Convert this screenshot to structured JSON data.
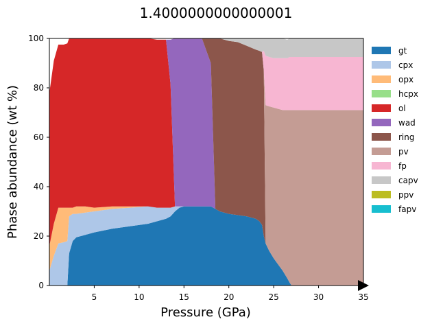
{
  "chart_data": {
    "type": "area",
    "title": "1.4000000000000001",
    "xlabel": "Pressure (GPa)",
    "ylabel": "Phase abundance (wt %)",
    "xlim": [
      0,
      35
    ],
    "ylim": [
      0,
      100
    ],
    "xticks": [
      5,
      10,
      15,
      20,
      25,
      30,
      35
    ],
    "yticks": [
      0,
      20,
      40,
      60,
      80,
      100
    ],
    "grid": false,
    "legend_position": "right",
    "x": [
      0,
      0.5,
      1,
      1.6,
      2,
      2.2,
      2.6,
      3,
      4,
      5,
      7,
      9,
      11,
      12,
      13,
      13.5,
      14,
      14.5,
      15,
      16,
      17,
      18,
      18.5,
      19,
      20,
      21,
      22,
      23,
      23.4,
      23.7,
      23.9,
      24.1,
      24.5,
      25,
      26,
      26.5,
      26.8,
      27,
      28,
      30,
      32,
      35
    ],
    "series": [
      {
        "name": "gt",
        "color": "#1f77b4",
        "values": [
          0,
          0,
          0,
          0,
          0,
          13,
          18,
          19.5,
          20.5,
          21.5,
          23,
          24,
          25,
          26,
          27,
          28,
          30,
          31.5,
          32,
          32,
          32,
          32,
          31,
          30,
          29,
          28.5,
          28,
          27,
          26,
          24.5,
          20,
          17,
          14,
          11,
          6,
          3,
          1,
          0,
          0,
          0,
          0,
          0
        ]
      },
      {
        "name": "cpx",
        "color": "#aec7e8",
        "values": [
          6,
          12,
          17,
          17.5,
          18,
          15,
          11,
          9.5,
          9,
          8.5,
          8,
          7.5,
          7,
          5.5,
          4.5,
          3.5,
          2,
          0.5,
          0,
          0,
          0,
          0,
          0,
          0,
          0,
          0,
          0,
          0,
          0,
          0,
          0,
          0,
          0,
          0,
          0,
          0,
          0,
          0,
          0,
          0,
          0,
          0
        ]
      },
      {
        "name": "opx",
        "color": "#ffbb78",
        "values": [
          10,
          13,
          14.5,
          14,
          13.5,
          3.5,
          2.5,
          3,
          2.5,
          1.5,
          1,
          0.5,
          0,
          0,
          0,
          0,
          0,
          0,
          0,
          0,
          0,
          0,
          0,
          0,
          0,
          0,
          0,
          0,
          0,
          0,
          0,
          0,
          0,
          0,
          0,
          0,
          0,
          0,
          0,
          0,
          0,
          0
        ]
      },
      {
        "name": "hcpx",
        "color": "#98df8a",
        "values": [
          0,
          0,
          0,
          0,
          0,
          0,
          0,
          0,
          0,
          0,
          0,
          0,
          0,
          0,
          0,
          0,
          0,
          0,
          0,
          0,
          0,
          0,
          0,
          0,
          0,
          0,
          0,
          0,
          0,
          0,
          0,
          0,
          0,
          0,
          0,
          0,
          0,
          0,
          0,
          0,
          0,
          0
        ]
      },
      {
        "name": "ol",
        "color": "#d62728",
        "values": [
          62,
          66,
          66,
          66,
          66.5,
          68.5,
          68.5,
          68,
          68,
          68.5,
          68,
          68,
          68,
          68,
          68,
          50,
          0,
          0,
          0,
          0,
          0,
          0,
          0,
          0,
          0,
          0,
          0,
          0,
          0,
          0,
          0,
          0,
          0,
          0,
          0,
          0,
          0,
          0,
          0,
          0,
          0,
          0
        ]
      },
      {
        "name": "wad",
        "color": "#9467bd",
        "values": [
          0,
          0,
          0,
          0,
          0,
          0,
          0,
          0,
          0,
          0,
          0,
          0,
          0,
          0,
          0,
          18,
          68,
          68,
          68,
          68,
          68,
          58,
          0,
          0,
          0,
          0,
          0,
          0,
          0,
          0,
          0,
          0,
          0,
          0,
          0,
          0,
          0,
          0,
          0,
          0,
          0,
          0
        ]
      },
      {
        "name": "ring",
        "color": "#8c564b",
        "values": [
          0,
          0,
          0,
          0,
          0,
          0,
          0,
          0,
          0,
          0,
          0,
          0,
          0,
          0,
          0,
          0,
          0,
          0,
          0,
          0,
          0,
          10,
          69,
          70,
          70,
          70,
          69,
          68.5,
          69,
          70,
          67,
          0,
          0,
          0,
          0,
          0,
          0,
          0,
          0,
          0,
          0,
          0
        ]
      },
      {
        "name": "pv",
        "color": "#c49c94",
        "values": [
          0,
          0,
          0,
          0,
          0,
          0,
          0,
          0,
          0,
          0,
          0,
          0,
          0,
          0,
          0,
          0,
          0,
          0,
          0,
          0,
          0,
          0,
          0,
          0,
          0,
          0,
          0,
          0,
          0,
          0,
          0,
          56,
          58.5,
          61,
          65,
          68,
          70,
          71,
          71,
          71,
          71,
          71
        ]
      },
      {
        "name": "fp",
        "color": "#f7b6d2",
        "values": [
          0,
          0,
          0,
          0,
          0,
          0,
          0,
          0,
          0,
          0,
          0,
          0,
          0,
          0,
          0,
          0,
          0,
          0,
          0,
          0,
          0,
          0,
          0,
          0,
          0,
          0,
          0,
          0,
          0,
          0,
          8,
          20,
          20,
          20,
          21,
          21,
          21.5,
          21.5,
          21.5,
          21.5,
          21.5,
          21.5
        ]
      },
      {
        "name": "capv",
        "color": "#c7c7c7",
        "values": [
          0,
          0,
          0,
          0,
          0,
          0,
          0,
          0,
          0,
          0,
          0,
          0,
          0,
          0,
          0,
          0,
          0,
          0,
          0,
          0,
          0,
          0,
          0,
          0,
          1,
          1.5,
          3,
          4.5,
          5,
          5.5,
          5,
          7,
          7.5,
          8,
          8,
          7.5,
          7.5,
          7.5,
          7.5,
          7.5,
          7.5,
          7.5
        ]
      },
      {
        "name": "ppv",
        "color": "#bcbd22",
        "values": [
          0,
          0,
          0,
          0,
          0,
          0,
          0,
          0,
          0,
          0,
          0,
          0,
          0,
          0,
          0,
          0,
          0,
          0,
          0,
          0,
          0,
          0,
          0,
          0,
          0,
          0,
          0,
          0,
          0,
          0,
          0,
          0,
          0,
          0,
          0,
          0,
          0,
          0,
          0,
          0,
          0,
          0
        ]
      },
      {
        "name": "fapv",
        "color": "#17becf",
        "values": [
          0,
          0,
          0,
          0,
          0,
          0,
          0,
          0,
          0,
          0,
          0,
          0,
          0,
          0,
          0,
          0,
          0,
          0,
          0,
          0,
          0,
          0,
          0,
          0,
          0,
          0,
          0,
          0,
          0,
          0,
          0,
          0,
          0,
          0,
          0,
          0,
          0,
          0,
          0,
          0,
          0,
          0
        ]
      }
    ]
  }
}
